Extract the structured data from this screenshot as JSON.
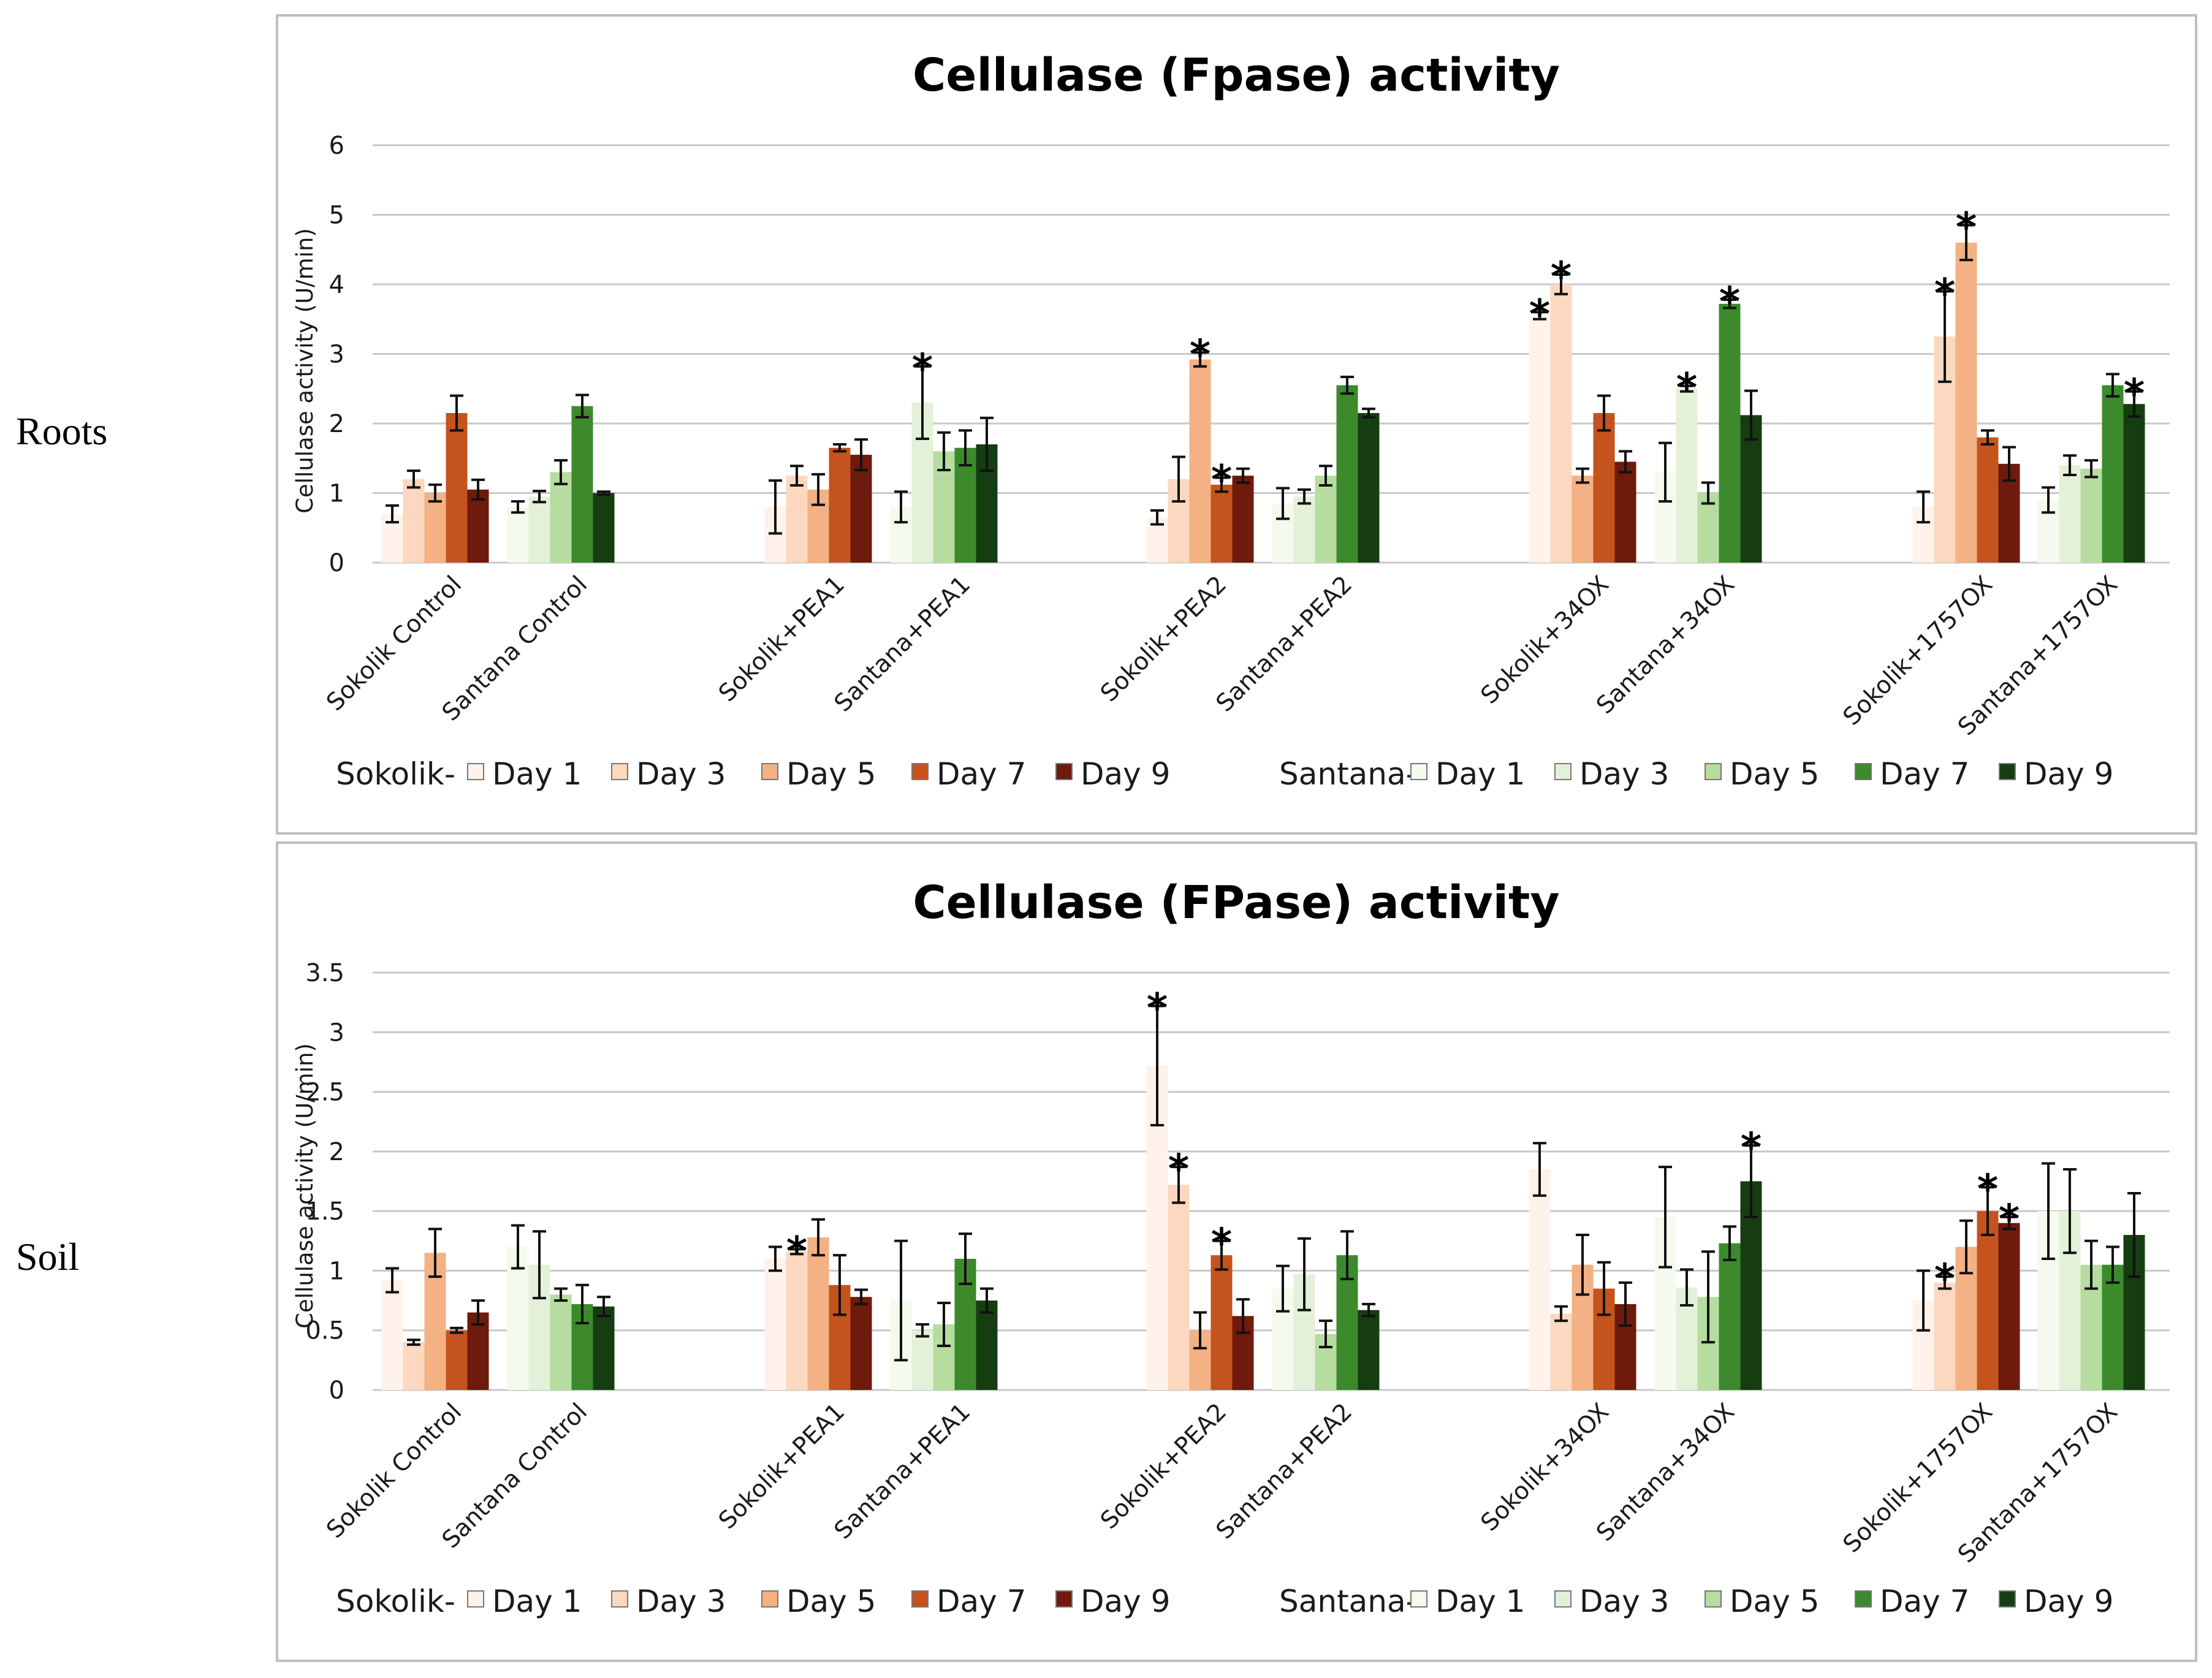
{
  "row_labels": [
    "Roots",
    "Soil"
  ],
  "colors": {
    "sokolik": [
      "#fff2ea",
      "#fbd8bf",
      "#f3b184",
      "#c4531d",
      "#6e1a0c"
    ],
    "santana": [
      "#f4faee",
      "#e4f1d9",
      "#b6dca0",
      "#3c8a2b",
      "#163d12"
    ],
    "grid": "#c8c8c8",
    "frame": "#bfbfbf"
  },
  "chart_data": [
    {
      "type": "bar",
      "title": "Cellulase (Fpase) activity",
      "ylabel": "Cellulase activity (U/min)",
      "xlabel": "",
      "ylim": [
        0,
        6
      ],
      "yticks": [
        "0",
        "1",
        "2",
        "3",
        "4",
        "5",
        "6"
      ],
      "grid": true,
      "categories": [
        "Sokolik Control",
        "Santana Control",
        "Sokolik+PEA1",
        "Santana+PEA1",
        "Sokolik+PEA2",
        "Santana+PEA2",
        "Sokolik+34OX",
        "Santana+34OX",
        "Sokolik+1757OX",
        "Santana+1757OX"
      ],
      "series_days": [
        "Day 1",
        "Day 3",
        "Day 5",
        "Day 7",
        "Day 9"
      ],
      "values": [
        [
          0.7,
          1.2,
          1.0,
          2.15,
          1.05
        ],
        [
          0.8,
          0.95,
          1.3,
          2.25,
          1.0
        ],
        [
          0.8,
          1.25,
          1.05,
          1.65,
          1.55
        ],
        [
          0.8,
          2.3,
          1.6,
          1.65,
          1.7
        ],
        [
          0.65,
          1.2,
          2.92,
          1.12,
          1.25
        ],
        [
          0.85,
          0.95,
          1.25,
          2.55,
          2.15
        ],
        [
          3.55,
          4.0,
          1.25,
          2.15,
          1.45
        ],
        [
          1.3,
          2.5,
          1.0,
          3.72,
          2.12
        ],
        [
          0.8,
          3.25,
          4.6,
          1.8,
          1.42
        ],
        [
          0.9,
          1.4,
          1.35,
          2.55,
          2.28
        ]
      ],
      "errors": [
        [
          0.12,
          0.12,
          0.12,
          0.25,
          0.14
        ],
        [
          0.08,
          0.08,
          0.17,
          0.16,
          0.02
        ],
        [
          0.38,
          0.14,
          0.22,
          0.05,
          0.22
        ],
        [
          0.22,
          0.52,
          0.27,
          0.25,
          0.38
        ],
        [
          0.1,
          0.32,
          0.1,
          0.1,
          0.1
        ],
        [
          0.22,
          0.1,
          0.14,
          0.12,
          0.06
        ],
        [
          0.05,
          0.14,
          0.1,
          0.25,
          0.15
        ],
        [
          0.42,
          0.04,
          0.15,
          0.06,
          0.35
        ],
        [
          0.22,
          0.65,
          0.25,
          0.1,
          0.24
        ],
        [
          0.18,
          0.14,
          0.12,
          0.16,
          0.18
        ]
      ],
      "significance": [
        [
          0,
          0,
          0,
          0,
          0
        ],
        [
          0,
          0,
          0,
          0,
          0
        ],
        [
          0,
          0,
          0,
          0,
          0
        ],
        [
          0,
          1,
          0,
          0,
          0
        ],
        [
          0,
          0,
          1,
          1,
          0
        ],
        [
          0,
          0,
          0,
          0,
          0
        ],
        [
          1,
          1,
          0,
          0,
          0
        ],
        [
          0,
          1,
          0,
          1,
          0
        ],
        [
          0,
          1,
          1,
          0,
          0
        ],
        [
          0,
          0,
          0,
          0,
          1
        ]
      ],
      "significance_marker": "*",
      "legend": {
        "sokolik_prefix": "Sokolik-",
        "santana_prefix": "Santana-",
        "entries": [
          "Day 1",
          "Day 3",
          "Day 5",
          "Day 7",
          "Day 9"
        ],
        "placement": "bottom"
      }
    },
    {
      "type": "bar",
      "title": "Cellulase (FPase) activity",
      "ylabel": "Cellulase activity (U/min)",
      "xlabel": "",
      "ylim": [
        0,
        3.5
      ],
      "yticks": [
        "0",
        "0.5",
        "1",
        "1.5",
        "2",
        "2.5",
        "3",
        "3.5"
      ],
      "grid": true,
      "categories": [
        "Sokolik Control",
        "Santana Control",
        "Sokolik+PEA1",
        "Santana+PEA1",
        "Sokolik+PEA2",
        "Santana+PEA2",
        "Sokolik+34OX",
        "Santana+34OX",
        "Sokolik+1757OX",
        "Santana+1757OX"
      ],
      "series_days": [
        "Day 1",
        "Day 3",
        "Day 5",
        "Day 7",
        "Day 9"
      ],
      "values": [
        [
          0.92,
          0.4,
          1.15,
          0.5,
          0.65
        ],
        [
          1.2,
          1.05,
          0.8,
          0.72,
          0.7
        ],
        [
          1.1,
          1.16,
          1.28,
          0.88,
          0.78
        ],
        [
          0.75,
          0.5,
          0.55,
          1.1,
          0.75
        ],
        [
          2.72,
          1.72,
          0.5,
          1.13,
          0.62
        ],
        [
          0.85,
          0.97,
          0.47,
          1.13,
          0.67
        ],
        [
          1.85,
          0.64,
          1.05,
          0.85,
          0.72
        ],
        [
          1.45,
          0.86,
          0.78,
          1.23,
          1.75
        ],
        [
          0.75,
          0.9,
          1.2,
          1.5,
          1.4
        ],
        [
          1.5,
          1.5,
          1.05,
          1.05,
          1.3
        ]
      ],
      "errors": [
        [
          0.1,
          0.02,
          0.2,
          0.02,
          0.1
        ],
        [
          0.18,
          0.28,
          0.05,
          0.16,
          0.08
        ],
        [
          0.1,
          0.02,
          0.15,
          0.25,
          0.06
        ],
        [
          0.5,
          0.05,
          0.18,
          0.21,
          0.1
        ],
        [
          0.5,
          0.15,
          0.15,
          0.12,
          0.14
        ],
        [
          0.19,
          0.3,
          0.11,
          0.2,
          0.05
        ],
        [
          0.22,
          0.06,
          0.25,
          0.22,
          0.18
        ],
        [
          0.42,
          0.15,
          0.38,
          0.14,
          0.3
        ],
        [
          0.25,
          0.05,
          0.22,
          0.2,
          0.05
        ],
        [
          0.4,
          0.35,
          0.2,
          0.15,
          0.35
        ]
      ],
      "significance": [
        [
          0,
          0,
          0,
          0,
          0
        ],
        [
          0,
          0,
          0,
          0,
          0
        ],
        [
          0,
          1,
          0,
          0,
          0
        ],
        [
          0,
          0,
          0,
          0,
          0
        ],
        [
          1,
          1,
          0,
          1,
          0
        ],
        [
          0,
          0,
          0,
          0,
          0
        ],
        [
          0,
          0,
          0,
          0,
          0
        ],
        [
          0,
          0,
          0,
          0,
          1
        ],
        [
          0,
          1,
          0,
          1,
          1
        ],
        [
          0,
          0,
          0,
          0,
          0
        ]
      ],
      "significance_marker": "*",
      "legend": {
        "sokolik_prefix": "Sokolik-",
        "santana_prefix": "Santana-",
        "entries": [
          "Day 1",
          "Day 3",
          "Day 5",
          "Day 7",
          "Day 9"
        ],
        "placement": "bottom"
      }
    }
  ]
}
